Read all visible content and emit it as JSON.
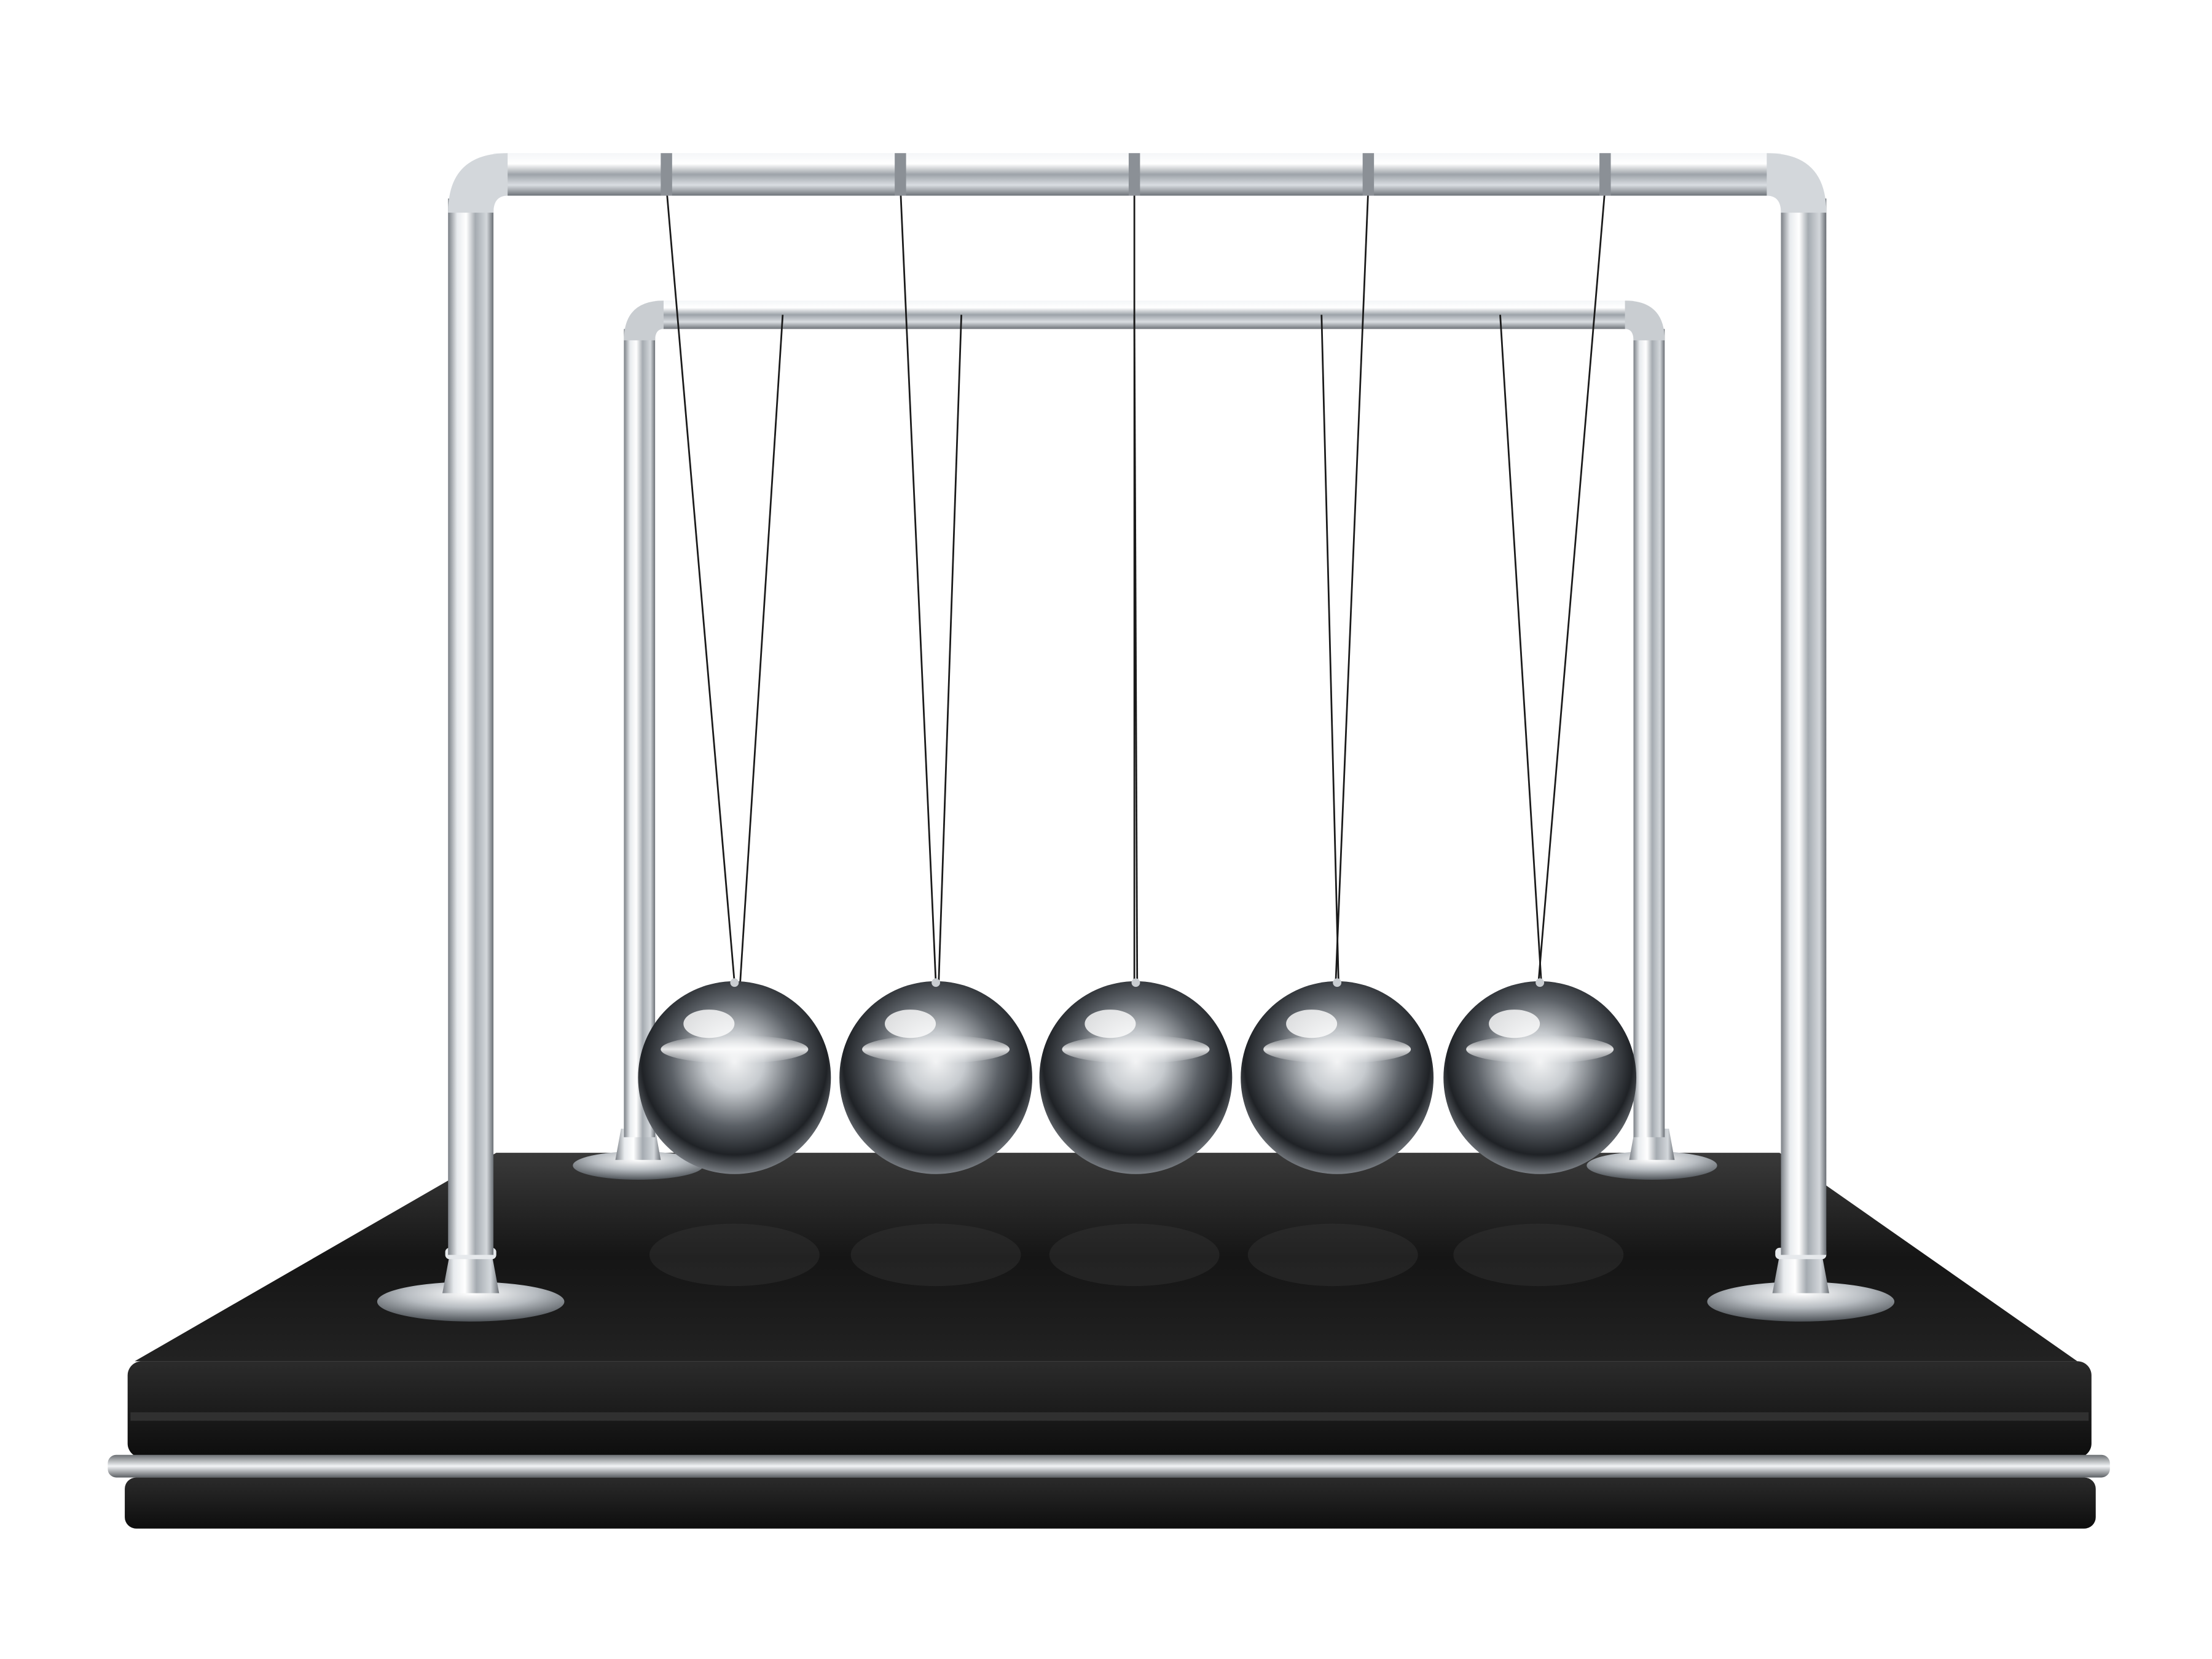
{
  "scene": {
    "subject": "newtons-cradle",
    "background_color": "#ffffff",
    "frame_color": "#c8ccd0",
    "base_color": "#1c1c1c",
    "ball_color": "#9aa0a6",
    "string_color": "#1a1a1a",
    "ball_count": 5
  }
}
